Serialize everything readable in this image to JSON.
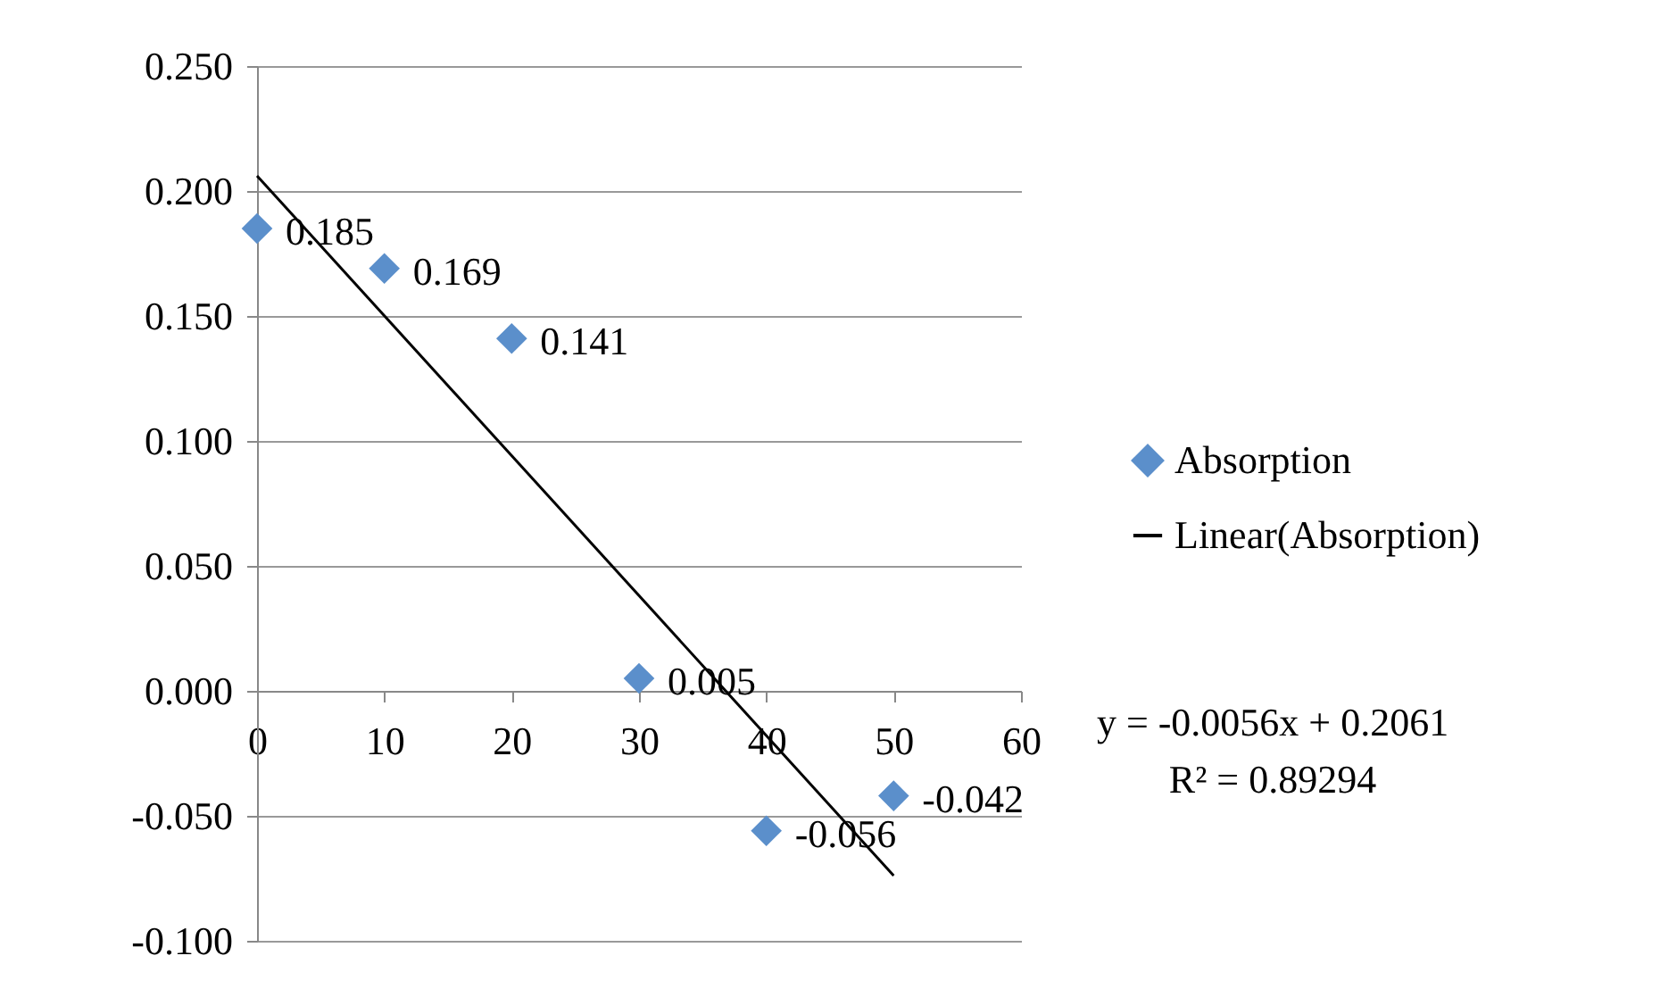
{
  "chart_data": {
    "type": "scatter",
    "x": [
      0,
      10,
      20,
      30,
      40,
      50
    ],
    "series": [
      {
        "name": "Absorption",
        "color": "#5b8fcb",
        "marker": "diamond",
        "values": [
          0.185,
          0.169,
          0.141,
          0.005,
          -0.056,
          -0.042
        ],
        "value_labels": [
          "0.185",
          "0.169",
          "0.141",
          "0.005",
          "-0.056",
          "-0.042"
        ]
      },
      {
        "name": "Linear(Absorption)",
        "type": "line",
        "color": "#000000",
        "x": [
          0,
          50
        ],
        "values": [
          0.2061,
          -0.0739
        ]
      }
    ],
    "xlim": [
      0,
      60
    ],
    "xticks": [
      0,
      10,
      20,
      30,
      40,
      50,
      60
    ],
    "ylim": [
      -0.1,
      0.25
    ],
    "yticks": [
      {
        "value": -0.1,
        "label": "-0.100"
      },
      {
        "value": -0.05,
        "label": "-0.050"
      },
      {
        "value": 0,
        "label": "0.000"
      },
      {
        "value": 0.05,
        "label": "0.050"
      },
      {
        "value": 0.1,
        "label": "0.100"
      },
      {
        "value": 0.15,
        "label": "0.150"
      },
      {
        "value": 0.2,
        "label": "0.200"
      },
      {
        "value": 0.25,
        "label": "0.250"
      }
    ],
    "grid": "y",
    "legend": "right",
    "annotations": [
      "y = -0.0056x + 0.2061",
      "R² = 0.89294"
    ]
  }
}
